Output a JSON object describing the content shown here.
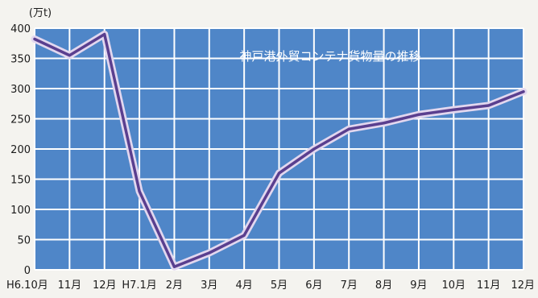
{
  "chart_data": {
    "type": "line",
    "title": "神戸港外貿コンテナ貨物量の推移",
    "ylabel": "(万t)",
    "xlabel": "",
    "categories": [
      "H6.10月",
      "11月",
      "12月",
      "H7.1月",
      "2月",
      "3月",
      "4月",
      "5月",
      "6月",
      "7月",
      "8月",
      "9月",
      "10月",
      "11月",
      "12月"
    ],
    "series": [
      {
        "values": [
          382,
          355,
          390,
          130,
          5,
          28,
          57,
          160,
          200,
          233,
          243,
          257,
          265,
          272,
          295
        ]
      }
    ],
    "ylim": [
      0,
      400
    ],
    "yticks": [
      "0",
      "50",
      "100",
      "150",
      "200",
      "250",
      "300",
      "350",
      "400"
    ],
    "grid": true,
    "legend": "none"
  },
  "colors": {
    "plot_background": "#4f86c8",
    "grid": "#ffffff",
    "line_outer": "#e2d7ef",
    "line_inner": "#5a3f8f",
    "title_text": "#ffffff",
    "page_background": "#f4f3ef"
  }
}
